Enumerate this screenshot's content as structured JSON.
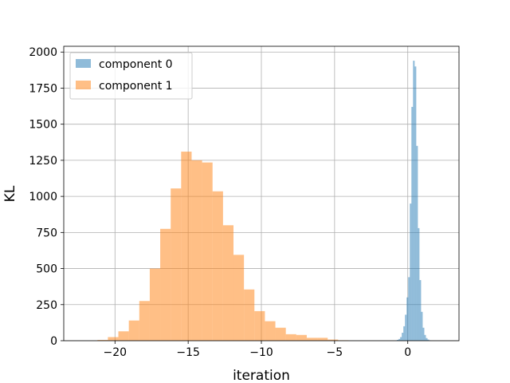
{
  "chart_data": {
    "type": "bar",
    "title": "",
    "xlabel": "iteration",
    "ylabel": "KL",
    "xlim": [
      -23.5,
      3.5
    ],
    "ylim": [
      0,
      2040
    ],
    "xticks": [
      -20,
      -15,
      -10,
      -5,
      0
    ],
    "yticks": [
      0,
      250,
      500,
      750,
      1000,
      1250,
      1500,
      1750,
      2000
    ],
    "grid": true,
    "legend_position": "top-left",
    "series": [
      {
        "name": "component 0",
        "color": "#1f77b4",
        "opacity": 0.5,
        "bin_width": 0.11,
        "bins": [
          {
            "x0": -0.85,
            "count": 2
          },
          {
            "x0": -0.74,
            "count": 6
          },
          {
            "x0": -0.63,
            "count": 12
          },
          {
            "x0": -0.52,
            "count": 25
          },
          {
            "x0": -0.41,
            "count": 55
          },
          {
            "x0": -0.3,
            "count": 100
          },
          {
            "x0": -0.19,
            "count": 180
          },
          {
            "x0": -0.08,
            "count": 300
          },
          {
            "x0": 0.03,
            "count": 440
          },
          {
            "x0": 0.14,
            "count": 950
          },
          {
            "x0": 0.25,
            "count": 1620
          },
          {
            "x0": 0.36,
            "count": 1940
          },
          {
            "x0": 0.47,
            "count": 1900
          },
          {
            "x0": 0.58,
            "count": 1350
          },
          {
            "x0": 0.69,
            "count": 780
          },
          {
            "x0": 0.8,
            "count": 420
          },
          {
            "x0": 0.91,
            "count": 200
          },
          {
            "x0": 1.02,
            "count": 90
          },
          {
            "x0": 1.13,
            "count": 40
          },
          {
            "x0": 1.24,
            "count": 18
          },
          {
            "x0": 1.35,
            "count": 8
          },
          {
            "x0": 1.46,
            "count": 3
          }
        ]
      },
      {
        "name": "component 1",
        "color": "#ff7f0e",
        "opacity": 0.5,
        "bin_width": 0.715,
        "bins": [
          {
            "x0": -21.2,
            "count": 5
          },
          {
            "x0": -20.485,
            "count": 25
          },
          {
            "x0": -19.77,
            "count": 65
          },
          {
            "x0": -19.055,
            "count": 140
          },
          {
            "x0": -18.34,
            "count": 275
          },
          {
            "x0": -17.625,
            "count": 500
          },
          {
            "x0": -16.91,
            "count": 775
          },
          {
            "x0": -16.195,
            "count": 1055
          },
          {
            "x0": -15.48,
            "count": 1310
          },
          {
            "x0": -14.765,
            "count": 1250
          },
          {
            "x0": -14.05,
            "count": 1235
          },
          {
            "x0": -13.335,
            "count": 1035
          },
          {
            "x0": -12.62,
            "count": 800
          },
          {
            "x0": -11.905,
            "count": 595
          },
          {
            "x0": -11.19,
            "count": 355
          },
          {
            "x0": -10.475,
            "count": 205
          },
          {
            "x0": -9.76,
            "count": 135
          },
          {
            "x0": -9.045,
            "count": 90
          },
          {
            "x0": -8.33,
            "count": 45
          },
          {
            "x0": -7.615,
            "count": 40
          },
          {
            "x0": -6.9,
            "count": 20
          },
          {
            "x0": -6.185,
            "count": 20
          },
          {
            "x0": -5.47,
            "count": 8
          },
          {
            "x0": -4.755,
            "count": 3
          }
        ]
      }
    ]
  }
}
